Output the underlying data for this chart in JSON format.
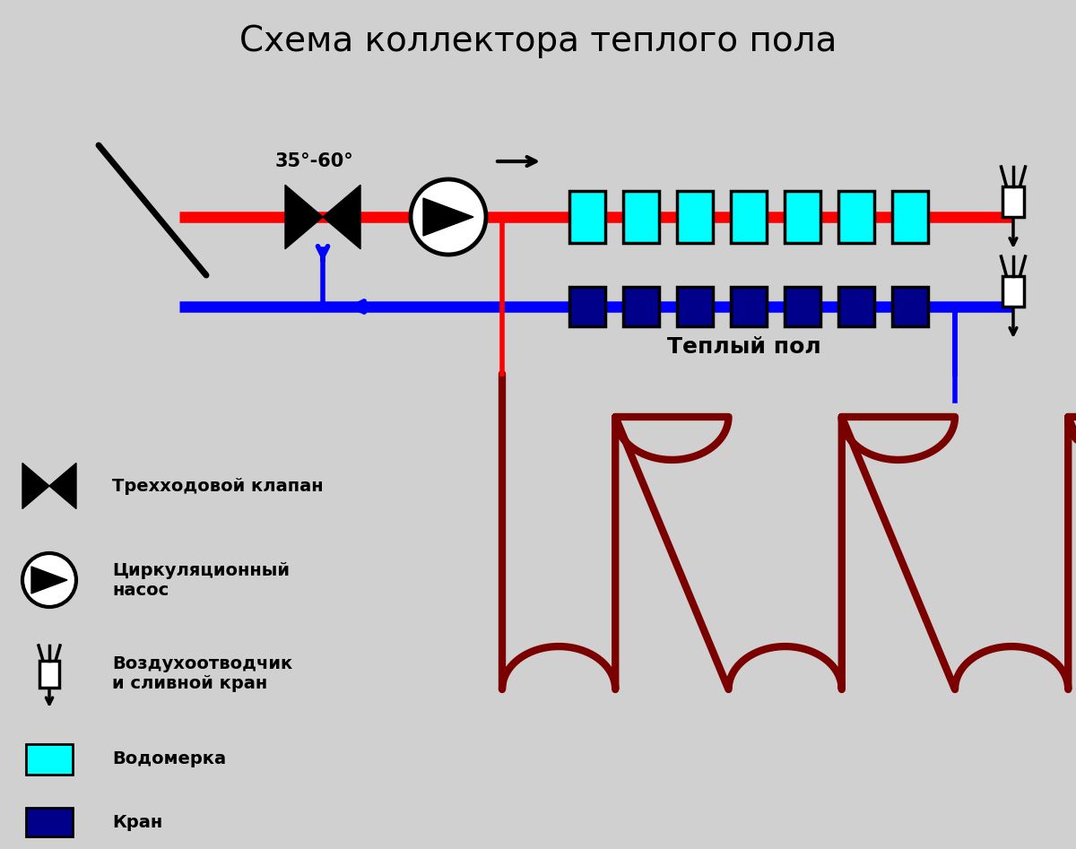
{
  "title": "Схема коллектора теплого пола",
  "bg_color": "#d0d0d0",
  "red": "#ff0000",
  "blue": "#0000ff",
  "dark_red": "#7a0000",
  "cyan": "#00ffff",
  "dark_blue": "#00008b",
  "black": "#000000",
  "white": "#ffffff",
  "temp_label": "35°-60°",
  "warm_floor_label": "Теплый пол",
  "legend_valve": "Трехходовой клапан",
  "legend_pump": "Циркуляционный\nнасос",
  "legend_vent": "Воздухоотводчик\nи сливной кран",
  "legend_meter": "Водомерка",
  "legend_crane": "Кран",
  "pipe_lw": 9,
  "thin_lw": 4
}
